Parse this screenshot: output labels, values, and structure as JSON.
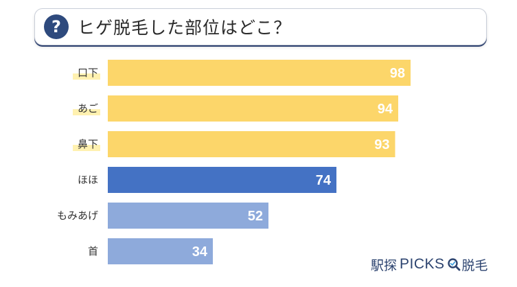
{
  "title": {
    "icon": "question-icon",
    "icon_glyph": "?",
    "text": "ヒゲ脱毛した部位はどこ？"
  },
  "chart_data": {
    "type": "bar",
    "orientation": "horizontal",
    "categories": [
      "口下",
      "あご",
      "鼻下",
      "ほほ",
      "もみあげ",
      "首"
    ],
    "values": [
      98,
      94,
      93,
      74,
      52,
      34
    ],
    "colors": [
      "#fcd66a",
      "#fcd66a",
      "#fcd66a",
      "#4472c4",
      "#8eaadb",
      "#8eaadb"
    ],
    "highlighted_categories": [
      "口下",
      "あご",
      "鼻下"
    ],
    "highlight_color": "#fff1b0",
    "xlim": [
      0,
      100
    ],
    "grid": false,
    "title": "",
    "xlabel": "",
    "ylabel": ""
  },
  "brand": {
    "part1": "駅探",
    "part2": "PICKS",
    "part3": "脱毛",
    "icon": "magnifier-icon",
    "color": "#2d4470"
  }
}
